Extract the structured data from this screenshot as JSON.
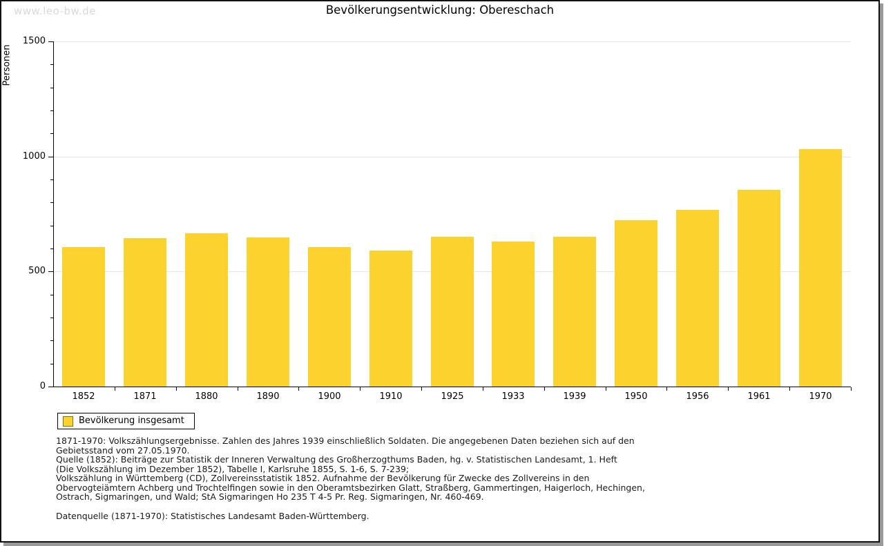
{
  "watermark": "www.leo-bw.de",
  "header": {
    "title": "Bevölkerungsentwicklung: Obereschach"
  },
  "chart_data": {
    "type": "bar",
    "title": "Bevölkerungsentwicklung: Obereschach",
    "ylabel": "Personen",
    "xlabel": "",
    "ylim": [
      0,
      1500
    ],
    "yticks": [
      0,
      500,
      1000,
      1500
    ],
    "minor_tick_interval": 100,
    "grid": true,
    "legend_position": "bottom-left",
    "bar_color": "#fcd32e",
    "axis_color": "#000000",
    "grid_color": "#e6e6e6",
    "categories": [
      "1852",
      "1871",
      "1880",
      "1890",
      "1900",
      "1910",
      "1925",
      "1933",
      "1939",
      "1950",
      "1956",
      "1961",
      "1970"
    ],
    "series": [
      {
        "name": "Bevölkerung insgesamt",
        "values": [
          605,
          646,
          667,
          649,
          605,
          592,
          650,
          630,
          650,
          722,
          769,
          856,
          1033
        ]
      }
    ]
  },
  "legend": {
    "label": "Bevölkerung insgesamt",
    "swatch_color": "#fcd32e"
  },
  "footnotes": {
    "lines": [
      "1871-1970: Volkszählungsergebnisse. Zahlen des Jahres 1939 einschließlich Soldaten. Die angegebenen Daten beziehen sich auf den",
      "Gebietsstand vom 27.05.1970.",
      "Quelle (1852): Beiträge zur Statistik der Inneren Verwaltung des Großherzogthums Baden, hg. v. Statistischen Landesamt, 1. Heft",
      "(Die Volkszählung im Dezember 1852), Tabelle I, Karlsruhe 1855, S. 1-6, S. 7-239;",
      "Volkszählung in Württemberg (CD), Zollvereinsstatistik 1852. Aufnahme der Bevölkerung für Zwecke des Zollvereins in den",
      "Obervogteiämtern Achberg und Trochtelfingen sowie in den Oberamtsbezirken Glatt, Straßberg, Gammertingen, Haigerloch, Hechingen,",
      "Ostrach, Sigmaringen, und Wald; StA Sigmaringen Ho 235 T 4-5 Pr. Reg. Sigmaringen, Nr. 460-469."
    ],
    "datasource": "Datenquelle (1871-1970): Statistisches Landesamt Baden-Württemberg."
  }
}
